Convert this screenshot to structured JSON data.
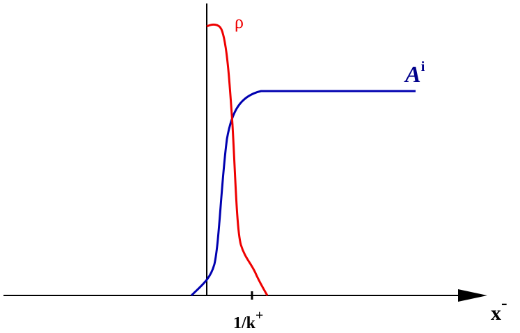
{
  "labels": {
    "rho": "ρ",
    "field": "A",
    "field_index": "i",
    "tick": "1/k",
    "tick_sup": "+",
    "axis": "x",
    "axis_sup": "-"
  }
}
